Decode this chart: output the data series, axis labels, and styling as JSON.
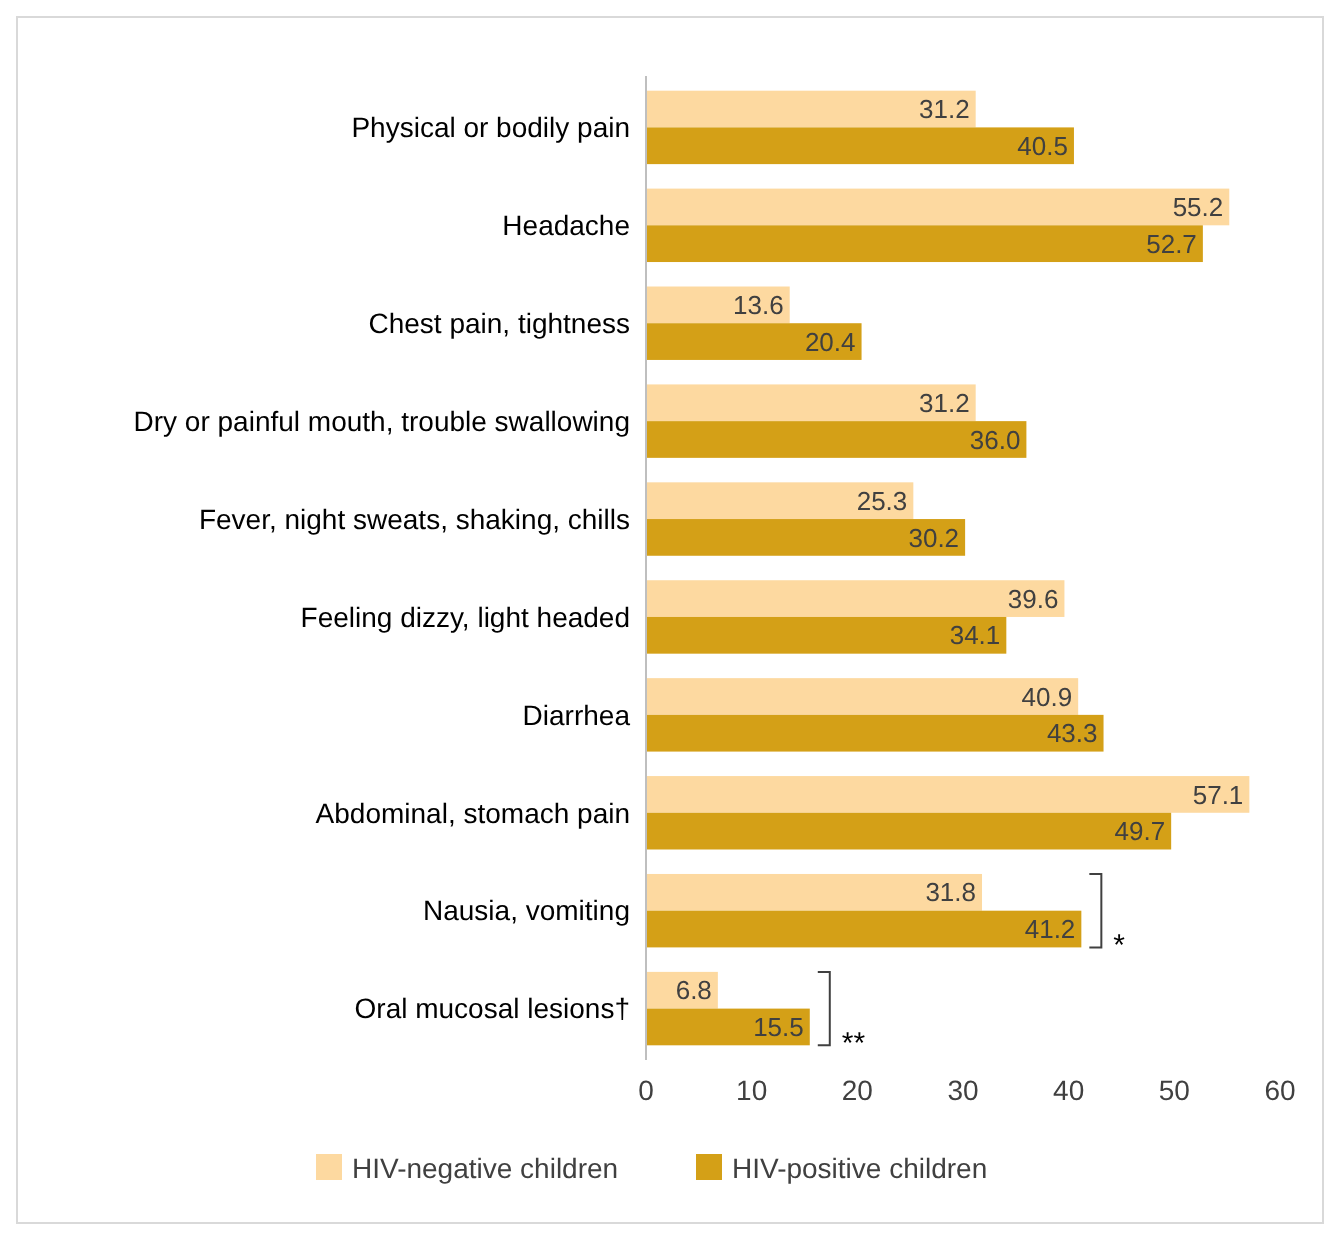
{
  "chart_data": {
    "type": "bar",
    "orientation": "horizontal",
    "categories": [
      "Physical or bodily pain",
      "Headache",
      "Chest pain, tightness",
      "Dry or painful mouth, trouble swallowing",
      "Fever, night sweats, shaking, chills",
      "Feeling dizzy, light headed",
      "Diarrhea",
      "Abdominal, stomach pain",
      "Nausia, vomiting",
      "Oral mucosal lesions†"
    ],
    "series": [
      {
        "name": "HIV-negative children",
        "color": "#fdd9a0",
        "values": [
          31.2,
          55.2,
          13.6,
          31.2,
          25.3,
          39.6,
          40.9,
          57.1,
          31.8,
          6.8
        ],
        "value_labels": [
          "31.2",
          "55.2",
          "13.6",
          "31.2",
          "25.3",
          "39.6",
          "40.9",
          "57.1",
          "31.8",
          "6.8"
        ]
      },
      {
        "name": "HIV-positive children",
        "color": "#d4a017",
        "values": [
          40.5,
          52.7,
          20.4,
          36.0,
          30.2,
          34.1,
          43.3,
          49.7,
          41.2,
          15.5
        ],
        "value_labels": [
          "40.5",
          "52.7",
          "20.4",
          "36.0",
          "30.2",
          "34.1",
          "43.3",
          "49.7",
          "41.2",
          "15.5"
        ]
      }
    ],
    "xlim": [
      0,
      60
    ],
    "xticks": [
      0,
      10,
      20,
      30,
      40,
      50,
      60
    ],
    "grid": false,
    "legend": "bottom",
    "annotations": [
      "*",
      "**"
    ]
  }
}
